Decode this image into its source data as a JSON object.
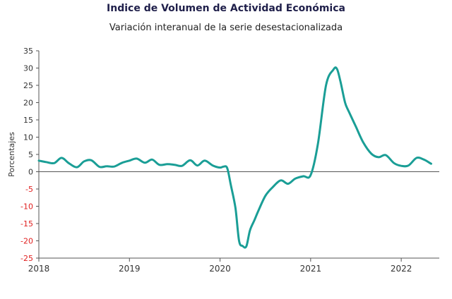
{
  "chart_data": {
    "type": "line",
    "title": "Indice de Volumen de  Actividad Económica",
    "subtitle": "Variación interanual de la serie desestacionalizada",
    "ylabel": "Porcentajes",
    "xlabel": "",
    "ylim": [
      -25,
      35
    ],
    "yticks": [
      35,
      30,
      25,
      20,
      15,
      10,
      5,
      0,
      -5,
      -10,
      -15,
      -20,
      -25
    ],
    "xlim": [
      2018.0,
      2022.42
    ],
    "xticks": [
      {
        "label": "2018",
        "value": 2018.0
      },
      {
        "label": "2019",
        "value": 2019.0
      },
      {
        "label": "2020",
        "value": 2020.0
      },
      {
        "label": "2021",
        "value": 2021.0
      },
      {
        "label": "2022",
        "value": 2022.0
      }
    ],
    "grid": false,
    "line_color": "#1a9e96",
    "negative_tick_color": "#e02020",
    "series": [
      {
        "name": "",
        "x": [
          2018.0,
          2018.08,
          2018.17,
          2018.25,
          2018.33,
          2018.42,
          2018.5,
          2018.58,
          2018.67,
          2018.75,
          2018.83,
          2018.92,
          2019.0,
          2019.08,
          2019.17,
          2019.25,
          2019.33,
          2019.42,
          2019.5,
          2019.58,
          2019.67,
          2019.75,
          2019.83,
          2019.92,
          2020.0,
          2020.04,
          2020.08,
          2020.12,
          2020.17,
          2020.21,
          2020.25,
          2020.29,
          2020.33,
          2020.38,
          2020.42,
          2020.5,
          2020.58,
          2020.67,
          2020.75,
          2020.83,
          2020.92,
          2021.0,
          2021.08,
          2021.17,
          2021.25,
          2021.29,
          2021.33,
          2021.38,
          2021.42,
          2021.5,
          2021.58,
          2021.67,
          2021.75,
          2021.83,
          2021.92,
          2022.0,
          2022.08,
          2022.17,
          2022.25,
          2022.33
        ],
        "values": [
          3.2,
          2.8,
          2.5,
          4.0,
          2.5,
          1.3,
          3.0,
          3.3,
          1.4,
          1.6,
          1.5,
          2.6,
          3.2,
          3.8,
          2.6,
          3.5,
          2.0,
          2.2,
          2.0,
          1.7,
          3.3,
          1.8,
          3.2,
          1.8,
          1.2,
          1.5,
          1.0,
          -4.0,
          -10.5,
          -20.0,
          -21.5,
          -21.6,
          -17.0,
          -14.0,
          -11.5,
          -7.0,
          -4.5,
          -2.5,
          -3.5,
          -2.0,
          -1.3,
          -1.0,
          8.0,
          25.0,
          29.5,
          29.8,
          26.0,
          20.0,
          17.5,
          13.0,
          8.5,
          5.2,
          4.2,
          4.8,
          2.5,
          1.7,
          1.8,
          4.0,
          3.5,
          2.3
        ]
      }
    ]
  }
}
